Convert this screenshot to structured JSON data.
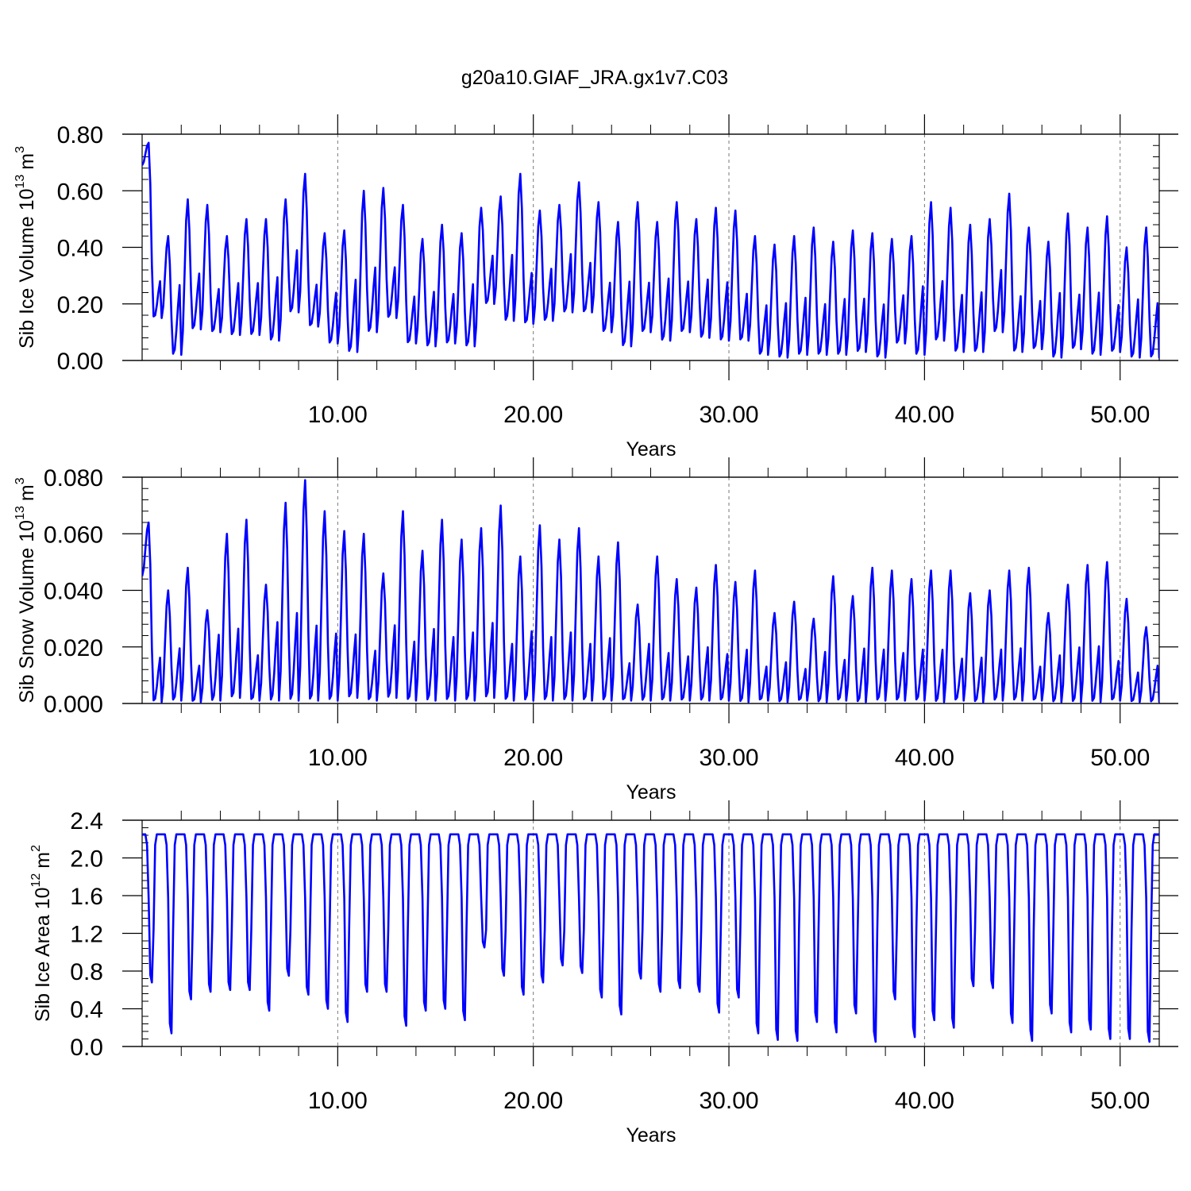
{
  "figure": {
    "title": "g20a10.GIAF_JRA.gx1v7.C03"
  },
  "colors": {
    "series": "#0000ff",
    "axes": "#000000",
    "grid": "#777777",
    "background": "#ffffff"
  },
  "chart_data": [
    {
      "type": "line",
      "title": "g20a10.GIAF_JRA.gx1v7.C03",
      "ylabel": "Sib Ice Volume 10",
      "ylabel_exp": "13",
      "ylabel_unit": "m",
      "ylabel_unit_exp": "3",
      "xlabel": "Years",
      "xlim": [
        0,
        52
      ],
      "ylim": [
        0,
        0.8
      ],
      "yticks": [
        0,
        0.2,
        0.4,
        0.6,
        0.8
      ],
      "ytick_labels": [
        "0.00",
        "0.20",
        "0.40",
        "0.60",
        "0.80"
      ],
      "xticks": [
        10,
        20,
        30,
        40,
        50
      ],
      "xtick_labels": [
        "10.00",
        "20.00",
        "30.00",
        "40.00",
        "50.00"
      ],
      "grid": "vertical dashed at major x ticks",
      "series": [
        {
          "values": {
            "max": [
              0.77,
              0.44,
              0.57,
              0.55,
              0.44,
              0.5,
              0.5,
              0.57,
              0.66,
              0.45,
              0.46,
              0.6,
              0.61,
              0.55,
              0.43,
              0.48,
              0.45,
              0.54,
              0.58,
              0.66,
              0.53,
              0.55,
              0.63,
              0.56,
              0.49,
              0.56,
              0.49,
              0.56,
              0.5,
              0.54,
              0.53,
              0.44,
              0.41,
              0.44,
              0.47,
              0.42,
              0.46,
              0.45,
              0.43,
              0.44,
              0.56,
              0.54,
              0.48,
              0.5,
              0.59,
              0.47,
              0.42,
              0.52,
              0.47,
              0.51,
              0.4,
              0.47,
              0.44
            ],
            "min": [
              0.15,
              0.02,
              0.11,
              0.1,
              0.09,
              0.09,
              0.07,
              0.17,
              0.12,
              0.06,
              0.03,
              0.1,
              0.15,
              0.06,
              0.05,
              0.06,
              0.05,
              0.2,
              0.14,
              0.13,
              0.14,
              0.17,
              0.17,
              0.1,
              0.05,
              0.1,
              0.07,
              0.1,
              0.08,
              0.07,
              0.07,
              0.02,
              0.01,
              0.02,
              0.02,
              0.02,
              0.03,
              0.01,
              0.06,
              0.02,
              0.07,
              0.03,
              0.03,
              0.1,
              0.03,
              0.04,
              0.01,
              0.04,
              0.02,
              0.03,
              0.01,
              0.01,
              0.01
            ],
            "first": 0.69,
            "last": 0.22
          }
        }
      ]
    },
    {
      "type": "line",
      "ylabel": "Sib Snow Volume 10",
      "ylabel_exp": "13",
      "ylabel_unit": "m",
      "ylabel_unit_exp": "3",
      "xlabel": "Years",
      "xlim": [
        0,
        52
      ],
      "ylim": [
        0,
        0.08
      ],
      "yticks": [
        0,
        0.02,
        0.04,
        0.06,
        0.08
      ],
      "ytick_labels": [
        "0.000",
        "0.020",
        "0.040",
        "0.060",
        "0.080"
      ],
      "xticks": [
        10,
        20,
        30,
        40,
        50
      ],
      "xtick_labels": [
        "10.00",
        "20.00",
        "30.00",
        "40.00",
        "50.00"
      ],
      "grid": "vertical dashed at major x ticks",
      "series": [
        {
          "values": {
            "max": [
              0.064,
              0.04,
              0.048,
              0.033,
              0.06,
              0.065,
              0.042,
              0.071,
              0.079,
              0.068,
              0.061,
              0.06,
              0.046,
              0.068,
              0.054,
              0.065,
              0.058,
              0.062,
              0.07,
              0.052,
              0.063,
              0.058,
              0.062,
              0.052,
              0.057,
              0.035,
              0.052,
              0.044,
              0.041,
              0.049,
              0.043,
              0.047,
              0.032,
              0.036,
              0.03,
              0.045,
              0.038,
              0.048,
              0.047,
              0.044,
              0.047,
              0.047,
              0.039,
              0.04,
              0.047,
              0.048,
              0.032,
              0.042,
              0.049,
              0.05,
              0.037,
              0.027,
              0.033
            ],
            "min": [
              0.0005,
              0.001,
              0.0005,
              0.001,
              0.002,
              0.001,
              0.001,
              0.001,
              0.001,
              0.001,
              0.002,
              0.001,
              0.002,
              0.001,
              0.001,
              0.001,
              0.001,
              0.002,
              0.001,
              0.001,
              0.001,
              0.001,
              0.001,
              0.001,
              0.001,
              0.001,
              0.001,
              0.001,
              0.001,
              0.001,
              0.0005,
              0.001,
              0.0005,
              0.001,
              0.0005,
              0.001,
              0.0005,
              0.001,
              0.001,
              0.001,
              0.0005,
              0.001,
              0.0005,
              0.001,
              0.001,
              0.001,
              0.0005,
              0.0005,
              0.0005,
              0.001,
              0.0005,
              0.0005,
              0.0005
            ],
            "first": 0.045,
            "last": 0.014
          }
        }
      ]
    },
    {
      "type": "line",
      "ylabel": "Sib Ice Area 10",
      "ylabel_exp": "12",
      "ylabel_unit": "m",
      "ylabel_unit_exp": "2",
      "xlabel": "Years",
      "xlim": [
        0,
        52
      ],
      "ylim": [
        0,
        2.4
      ],
      "yticks": [
        0,
        0.4,
        0.8,
        1.2,
        1.6,
        2.0,
        2.4
      ],
      "ytick_labels": [
        "0.0",
        "0.4",
        "0.8",
        "1.2",
        "1.6",
        "2.0",
        "2.4"
      ],
      "xticks": [
        10,
        20,
        30,
        40,
        50
      ],
      "xtick_labels": [
        "10.00",
        "20.00",
        "30.00",
        "40.00",
        "50.00"
      ],
      "grid": "vertical dashed at major x ticks",
      "series": [
        {
          "values": {
            "max": 2.25,
            "min": [
              0.68,
              0.14,
              0.5,
              0.58,
              0.6,
              0.6,
              0.38,
              0.75,
              0.55,
              0.4,
              0.26,
              0.58,
              0.58,
              0.22,
              0.38,
              0.4,
              0.28,
              1.05,
              0.75,
              0.55,
              0.68,
              0.86,
              0.78,
              0.52,
              0.34,
              0.72,
              0.58,
              0.62,
              0.58,
              0.36,
              0.52,
              0.14,
              0.07,
              0.06,
              0.26,
              0.15,
              0.35,
              0.05,
              0.5,
              0.1,
              0.28,
              0.2,
              0.64,
              0.62,
              0.25,
              0.06,
              0.35,
              0.15,
              0.18,
              0.08,
              0.08,
              0.05
            ],
            "first": 2.25,
            "last": 2.25
          }
        }
      ]
    }
  ]
}
